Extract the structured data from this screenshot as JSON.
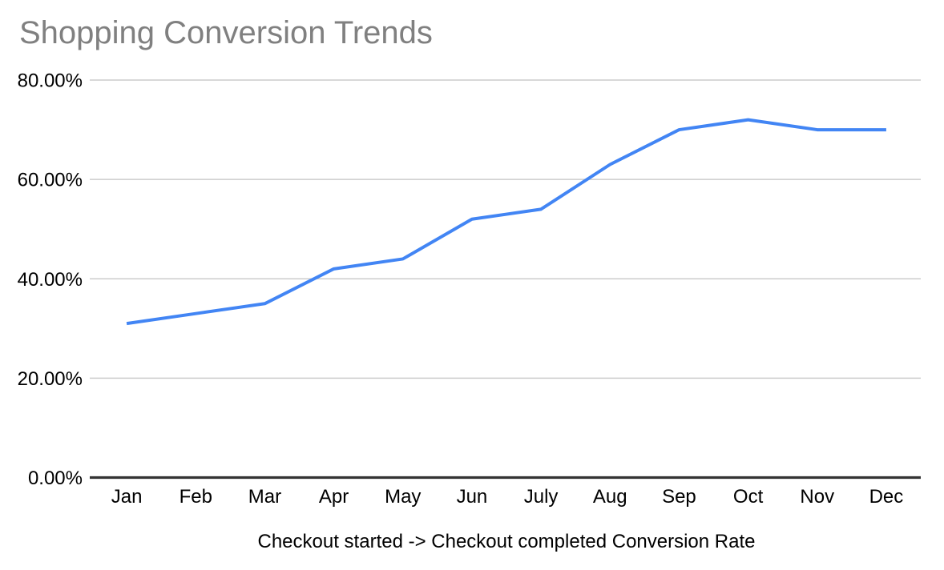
{
  "title": "Shopping Conversion Trends",
  "chart_data": {
    "type": "line",
    "title": "Shopping Conversion Trends",
    "categories": [
      "Jan",
      "Feb",
      "Mar",
      "Apr",
      "May",
      "Jun",
      "July",
      "Aug",
      "Sep",
      "Oct",
      "Nov",
      "Dec"
    ],
    "series": [
      {
        "name": "Checkout started -> Checkout completed Conversion Rate",
        "values": [
          31,
          33,
          35,
          42,
          44,
          52,
          54,
          63,
          70,
          72,
          70,
          70
        ]
      }
    ],
    "xlabel": "Checkout started -> Checkout completed Conversion Rate",
    "ylabel": "",
    "ylim": [
      0,
      80
    ],
    "yticks": [
      0,
      20,
      40,
      60,
      80
    ],
    "ytick_labels": [
      "0.00%",
      "20.00%",
      "40.00%",
      "60.00%",
      "80.00%"
    ],
    "grid": true,
    "legend_position": "none"
  },
  "colors": {
    "background": "#ffffff",
    "title_text": "#808080",
    "axis_text": "#000000",
    "gridline": "#cccccc",
    "axis_line": "#333333",
    "series_line": "#4285f4"
  }
}
